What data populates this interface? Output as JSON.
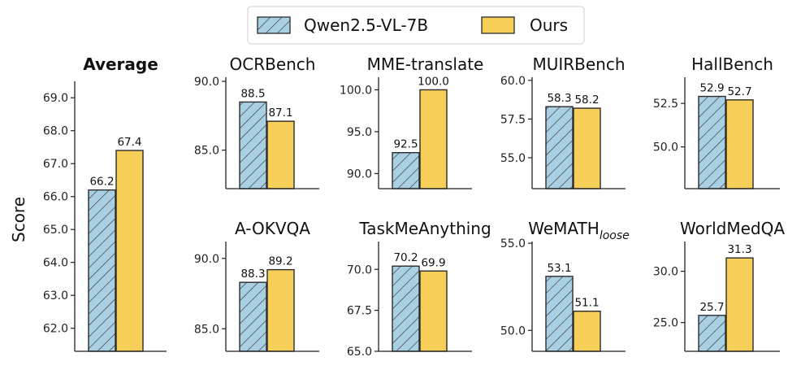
{
  "legend": {
    "items": [
      {
        "label": "Qwen2.5-VL-7B",
        "color": "#a9cfe3",
        "hatch": true
      },
      {
        "label": "Ours",
        "color": "#f7cf58",
        "hatch": false
      }
    ]
  },
  "ylabel": "Score",
  "chart_data": [
    {
      "type": "bar",
      "title": "Average",
      "title_bold": true,
      "categories": [
        "Qwen2.5-VL-7B",
        "Ours"
      ],
      "values": [
        66.2,
        67.4
      ],
      "labels": [
        "66.2",
        "67.4"
      ],
      "ylim": [
        61.3,
        69.5
      ],
      "yticks": [
        62.0,
        63.0,
        64.0,
        65.0,
        66.0,
        67.0,
        68.0,
        69.0
      ],
      "yticklabels": [
        "62.0",
        "63.0",
        "64.0",
        "65.0",
        "66.0",
        "67.0",
        "68.0",
        "69.0"
      ]
    },
    {
      "type": "bar",
      "title": "OCRBench",
      "categories": [
        "Qwen2.5-VL-7B",
        "Ours"
      ],
      "values": [
        88.5,
        87.1
      ],
      "labels": [
        "88.5",
        "87.1"
      ],
      "ylim": [
        82.2,
        90.3
      ],
      "yticks": [
        85.0,
        90.0
      ],
      "yticklabels": [
        "85.0",
        "90.0"
      ]
    },
    {
      "type": "bar",
      "title": "MME-translate",
      "categories": [
        "Qwen2.5-VL-7B",
        "Ours"
      ],
      "values": [
        92.5,
        100.0
      ],
      "labels": [
        "92.5",
        "100.0"
      ],
      "ylim": [
        88.2,
        101.5
      ],
      "yticks": [
        90.0,
        95.0,
        100.0
      ],
      "yticklabels": [
        "90.0",
        "95.0",
        "100.0"
      ]
    },
    {
      "type": "bar",
      "title": "MUIRBench",
      "categories": [
        "Qwen2.5-VL-7B",
        "Ours"
      ],
      "values": [
        58.3,
        58.2
      ],
      "labels": [
        "58.3",
        "58.2"
      ],
      "ylim": [
        53.0,
        60.2
      ],
      "yticks": [
        55.0,
        57.5,
        60.0
      ],
      "yticklabels": [
        "55.0",
        "57.5",
        "60.0"
      ]
    },
    {
      "type": "bar",
      "title": "HallBench",
      "categories": [
        "Qwen2.5-VL-7B",
        "Ours"
      ],
      "values": [
        52.9,
        52.7
      ],
      "labels": [
        "52.9",
        "52.7"
      ],
      "ylim": [
        47.6,
        54.0
      ],
      "yticks": [
        50.0,
        52.5
      ],
      "yticklabels": [
        "50.0",
        "52.5"
      ]
    },
    {
      "type": "bar",
      "title": "A-OKVQA",
      "categories": [
        "Qwen2.5-VL-7B",
        "Ours"
      ],
      "values": [
        88.3,
        89.2
      ],
      "labels": [
        "88.3",
        "89.2"
      ],
      "ylim": [
        83.4,
        91.2
      ],
      "yticks": [
        85.0,
        90.0
      ],
      "yticklabels": [
        "85.0",
        "90.0"
      ]
    },
    {
      "type": "bar",
      "title": "TaskMeAnything",
      "categories": [
        "Qwen2.5-VL-7B",
        "Ours"
      ],
      "values": [
        70.2,
        69.9
      ],
      "labels": [
        "70.2",
        "69.9"
      ],
      "ylim": [
        65.0,
        71.7
      ],
      "yticks": [
        65.0,
        67.5,
        70.0
      ],
      "yticklabels": [
        "65.0",
        "67.5",
        "70.0"
      ]
    },
    {
      "type": "bar",
      "title": "WeMATH",
      "title_sub": "loose",
      "categories": [
        "Qwen2.5-VL-7B",
        "Ours"
      ],
      "values": [
        53.1,
        51.1
      ],
      "labels": [
        "53.1",
        "51.1"
      ],
      "ylim": [
        48.8,
        55.1
      ],
      "yticks": [
        50.0,
        55.0
      ],
      "yticklabels": [
        "50.0",
        "55.0"
      ]
    },
    {
      "type": "bar",
      "title": "WorldMedQA",
      "categories": [
        "Qwen2.5-VL-7B",
        "Ours"
      ],
      "values": [
        25.7,
        31.3
      ],
      "labels": [
        "25.7",
        "31.3"
      ],
      "ylim": [
        22.2,
        32.9
      ],
      "yticks": [
        25.0,
        30.0
      ],
      "yticklabels": [
        "25.0",
        "30.0"
      ]
    }
  ]
}
